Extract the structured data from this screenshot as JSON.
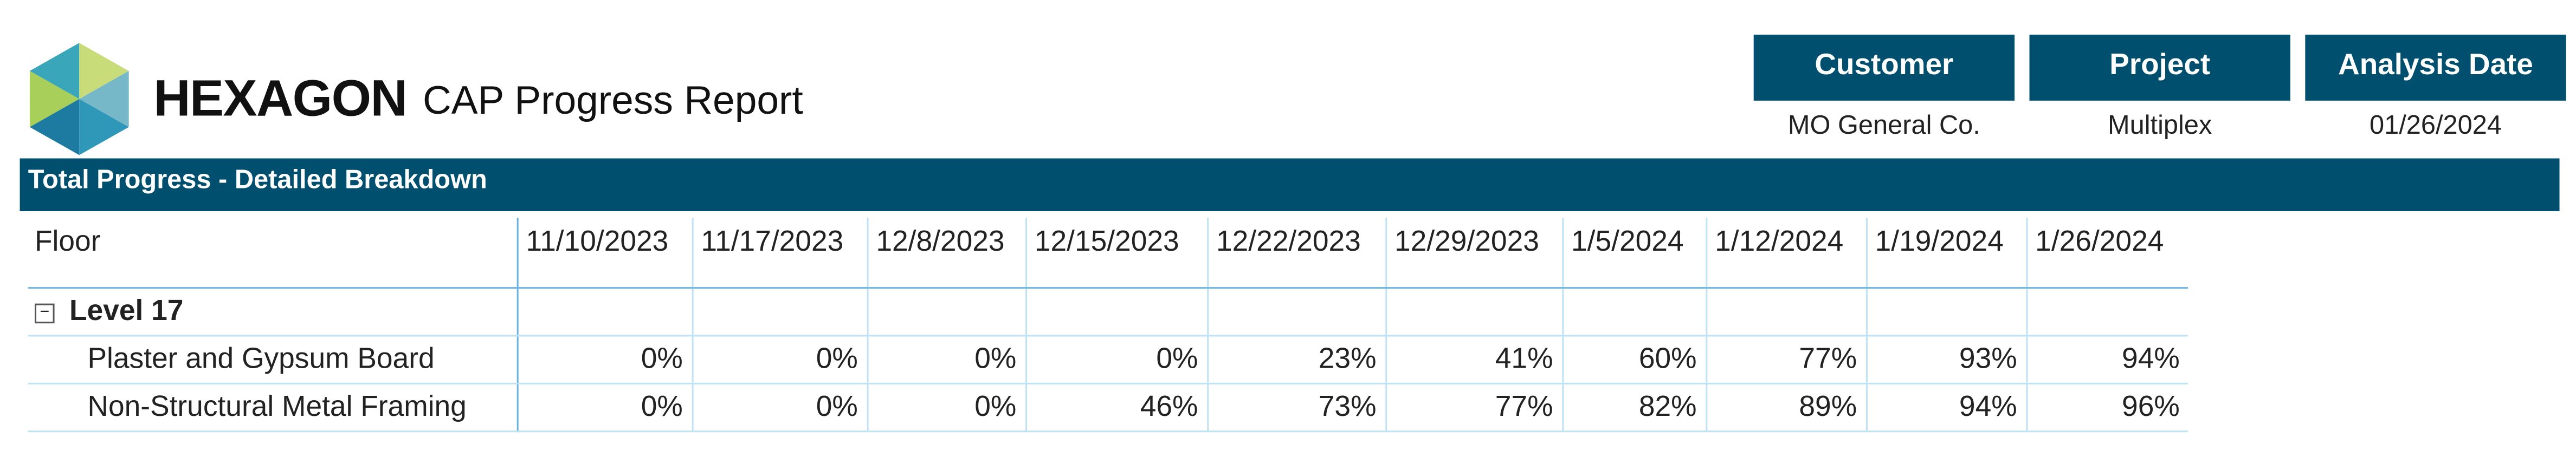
{
  "header": {
    "logo": "HEXAGON",
    "title": "CAP Progress Report",
    "info": [
      {
        "label": "Customer",
        "value": "MO General Co."
      },
      {
        "label": "Project",
        "value": "Multiplex"
      },
      {
        "label": "Analysis Date",
        "value": "01/26/2024"
      }
    ]
  },
  "section": {
    "title": "Total Progress - Detailed Breakdown"
  },
  "table": {
    "columns": [
      "Floor",
      "11/10/2023",
      "11/17/2023",
      "12/8/2023",
      "12/15/2023",
      "12/22/2023",
      "12/29/2023",
      "1/5/2024",
      "1/12/2024",
      "1/19/2024",
      "1/26/2024"
    ],
    "groups": [
      {
        "label": "Level 17",
        "rows": [
          {
            "label": "Plaster and Gypsum Board",
            "values": [
              "0%",
              "0%",
              "0%",
              "0%",
              "23%",
              "41%",
              "60%",
              "77%",
              "93%",
              "94%"
            ]
          },
          {
            "label": "Non-Structural Metal Framing",
            "values": [
              "0%",
              "0%",
              "0%",
              "46%",
              "73%",
              "77%",
              "82%",
              "89%",
              "94%",
              "96%"
            ]
          }
        ]
      }
    ]
  }
}
